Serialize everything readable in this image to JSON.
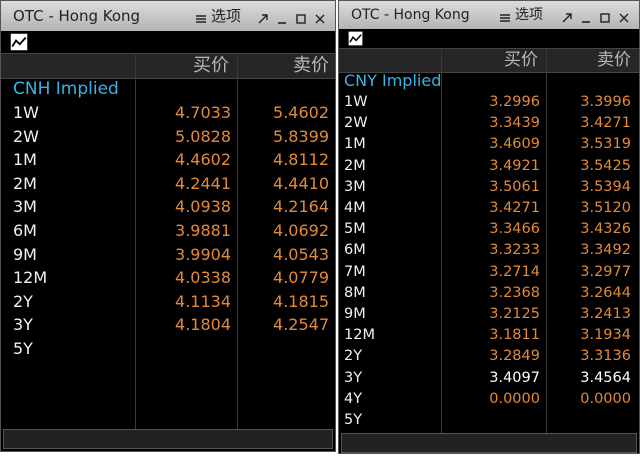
{
  "panels": [
    {
      "title": "OTC - Hong Kong",
      "menu": "选项",
      "columns": [
        "买价",
        "卖价"
      ],
      "section": "CNH Implied",
      "value_color": "#e3893a",
      "rows": [
        {
          "tenor": "1W",
          "bid": "4.7033",
          "ask": "5.4602"
        },
        {
          "tenor": "2W",
          "bid": "5.0828",
          "ask": "5.8399"
        },
        {
          "tenor": "1M",
          "bid": "4.4602",
          "ask": "4.8112"
        },
        {
          "tenor": "2M",
          "bid": "4.2441",
          "ask": "4.4410"
        },
        {
          "tenor": "3M",
          "bid": "4.0938",
          "ask": "4.2164"
        },
        {
          "tenor": "6M",
          "bid": "3.9881",
          "ask": "4.0692"
        },
        {
          "tenor": "9M",
          "bid": "3.9904",
          "ask": "4.0543"
        },
        {
          "tenor": "12M",
          "bid": "4.0338",
          "ask": "4.0779"
        },
        {
          "tenor": "2Y",
          "bid": "4.1134",
          "ask": "4.1815"
        },
        {
          "tenor": "3Y",
          "bid": "4.1804",
          "ask": "4.2547"
        },
        {
          "tenor": "5Y"
        }
      ]
    },
    {
      "title": "OTC - Hong Kong",
      "menu": "选项",
      "columns": [
        "买价",
        "卖价"
      ],
      "section": "CNY Implied",
      "value_color": "#e3893a",
      "rows": [
        {
          "tenor": "1W",
          "bid": "3.2996",
          "ask": "3.3996"
        },
        {
          "tenor": "2W",
          "bid": "3.3439",
          "ask": "3.4271"
        },
        {
          "tenor": "1M",
          "bid": "3.4609",
          "ask": "3.5319"
        },
        {
          "tenor": "2M",
          "bid": "3.4921",
          "ask": "3.5425"
        },
        {
          "tenor": "3M",
          "bid": "3.5061",
          "ask": "3.5394"
        },
        {
          "tenor": "4M",
          "bid": "3.4271",
          "ask": "3.5120"
        },
        {
          "tenor": "5M",
          "bid": "3.3466",
          "ask": "3.4326"
        },
        {
          "tenor": "6M",
          "bid": "3.3233",
          "ask": "3.3492"
        },
        {
          "tenor": "7M",
          "bid": "3.2714",
          "ask": "3.2977"
        },
        {
          "tenor": "8M",
          "bid": "3.2368",
          "ask": "3.2644"
        },
        {
          "tenor": "9M",
          "bid": "3.2125",
          "ask": "3.2413"
        },
        {
          "tenor": "12M",
          "bid": "3.1811",
          "ask": "3.1934"
        },
        {
          "tenor": "2Y",
          "bid": "3.2849",
          "ask": "3.3136"
        },
        {
          "tenor": "3Y",
          "bid": "3.4097",
          "ask": "3.4564",
          "color": "#ffffff"
        },
        {
          "tenor": "4Y",
          "bid": "0.0000",
          "ask": "0.0000"
        },
        {
          "tenor": "5Y"
        }
      ]
    }
  ]
}
